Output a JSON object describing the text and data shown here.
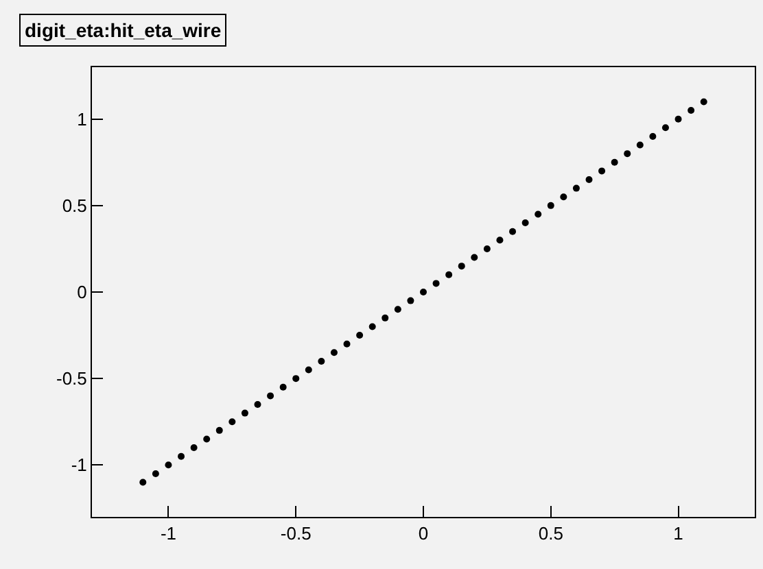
{
  "chart_data": {
    "type": "scatter",
    "title": "digit_eta:hit_eta_wire",
    "x": [
      -1.1,
      -1.05,
      -1.0,
      -0.95,
      -0.9,
      -0.85,
      -0.8,
      -0.75,
      -0.7,
      -0.65,
      -0.6,
      -0.55,
      -0.5,
      -0.45,
      -0.4,
      -0.35,
      -0.3,
      -0.25,
      -0.2,
      -0.15,
      -0.1,
      -0.05,
      0,
      0.05,
      0.1,
      0.15,
      0.2,
      0.25,
      0.3,
      0.35,
      0.4,
      0.45,
      0.5,
      0.55,
      0.6,
      0.65,
      0.7,
      0.75,
      0.8,
      0.85,
      0.9,
      0.95,
      1.0,
      1.05,
      1.1
    ],
    "series": [
      {
        "color": "#000000",
        "values": [
          -1.1,
          -1.05,
          -1.0,
          -0.95,
          -0.9,
          -0.85,
          -0.8,
          -0.75,
          -0.7,
          -0.65,
          -0.6,
          -0.55,
          -0.5,
          -0.45,
          -0.4,
          -0.35,
          -0.3,
          -0.25,
          -0.2,
          -0.15,
          -0.1,
          -0.05,
          0,
          0.05,
          0.1,
          0.15,
          0.2,
          0.25,
          0.3,
          0.35,
          0.4,
          0.45,
          0.5,
          0.55,
          0.6,
          0.65,
          0.7,
          0.75,
          0.8,
          0.85,
          0.9,
          0.95,
          1.0,
          1.05,
          1.1
        ]
      }
    ],
    "xlim": [
      -1.3,
      1.3
    ],
    "ylim": [
      -1.3,
      1.3
    ],
    "xticks": [
      -1,
      -0.5,
      0,
      0.5,
      1
    ],
    "yticks": [
      -1,
      -0.5,
      0,
      0.5,
      1
    ],
    "grid": false,
    "marker": "circle"
  }
}
